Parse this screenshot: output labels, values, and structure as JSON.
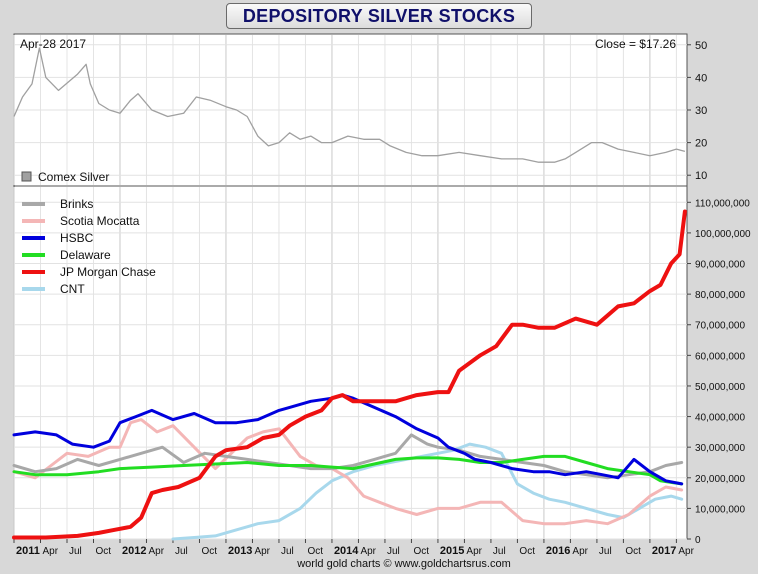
{
  "chart_title": "DEPOSITORY SILVER STOCKS",
  "footer": "world gold charts © www.goldchartsrus.com",
  "chart_data": [
    {
      "type": "line",
      "annotation_left": "Apr-28  2017",
      "annotation_right": "Close = $17.26",
      "legend": [
        "Comex Silver"
      ],
      "legend_placement": "bottom-left",
      "ylim": [
        7,
        53
      ],
      "yticks": [
        10,
        20,
        30,
        40,
        50
      ],
      "grid": true,
      "series": [
        {
          "name": "Comex Silver",
          "color": "#a0a0a0",
          "x": [
            2011.0,
            2011.08,
            2011.17,
            2011.24,
            2011.3,
            2011.42,
            2011.6,
            2011.68,
            2011.72,
            2011.8,
            2011.9,
            2012.0,
            2012.1,
            2012.17,
            2012.3,
            2012.45,
            2012.6,
            2012.72,
            2012.85,
            2013.0,
            2013.1,
            2013.2,
            2013.3,
            2013.4,
            2013.5,
            2013.6,
            2013.7,
            2013.8,
            2013.9,
            2014.0,
            2014.15,
            2014.3,
            2014.45,
            2014.55,
            2014.7,
            2014.85,
            2015.0,
            2015.2,
            2015.4,
            2015.6,
            2015.8,
            2015.95,
            2016.1,
            2016.2,
            2016.3,
            2016.45,
            2016.55,
            2016.7,
            2016.85,
            2017.0,
            2017.15,
            2017.25,
            2017.33
          ],
          "y": [
            28,
            34,
            38,
            49,
            40,
            36,
            41,
            44,
            38,
            32,
            30,
            29,
            33,
            35,
            30,
            28,
            29,
            34,
            33,
            31,
            30,
            28,
            22,
            19,
            20,
            23,
            21,
            22,
            20,
            20,
            22,
            21,
            21,
            19,
            17,
            16,
            16,
            17,
            16,
            15,
            15,
            14,
            14,
            15,
            17,
            20,
            20,
            18,
            17,
            16,
            17,
            18,
            17.3
          ]
        }
      ]
    },
    {
      "type": "line",
      "x_ticks": [
        {
          "x": 2011.0,
          "label": "2011",
          "major": true
        },
        {
          "x": 2011.25,
          "label": "Apr",
          "major": false
        },
        {
          "x": 2011.5,
          "label": "Jul",
          "major": false
        },
        {
          "x": 2011.75,
          "label": "Oct",
          "major": false
        },
        {
          "x": 2012.0,
          "label": "2012",
          "major": true
        },
        {
          "x": 2012.25,
          "label": "Apr",
          "major": false
        },
        {
          "x": 2012.5,
          "label": "Jul",
          "major": false
        },
        {
          "x": 2012.75,
          "label": "Oct",
          "major": false
        },
        {
          "x": 2013.0,
          "label": "2013",
          "major": true
        },
        {
          "x": 2013.25,
          "label": "Apr",
          "major": false
        },
        {
          "x": 2013.5,
          "label": "Jul",
          "major": false
        },
        {
          "x": 2013.75,
          "label": "Oct",
          "major": false
        },
        {
          "x": 2014.0,
          "label": "2014",
          "major": true
        },
        {
          "x": 2014.25,
          "label": "Apr",
          "major": false
        },
        {
          "x": 2014.5,
          "label": "Jul",
          "major": false
        },
        {
          "x": 2014.75,
          "label": "Oct",
          "major": false
        },
        {
          "x": 2015.0,
          "label": "2015",
          "major": true
        },
        {
          "x": 2015.25,
          "label": "Apr",
          "major": false
        },
        {
          "x": 2015.5,
          "label": "Jul",
          "major": false
        },
        {
          "x": 2015.75,
          "label": "Oct",
          "major": false
        },
        {
          "x": 2016.0,
          "label": "2016",
          "major": true
        },
        {
          "x": 2016.25,
          "label": "Apr",
          "major": false
        },
        {
          "x": 2016.5,
          "label": "Jul",
          "major": false
        },
        {
          "x": 2016.75,
          "label": "Oct",
          "major": false
        },
        {
          "x": 2017.0,
          "label": "2017",
          "major": true
        },
        {
          "x": 2017.25,
          "label": "Apr",
          "major": false
        }
      ],
      "ylim": [
        0,
        115000000
      ],
      "yticks": [
        0,
        10000000,
        20000000,
        30000000,
        40000000,
        50000000,
        60000000,
        70000000,
        80000000,
        90000000,
        100000000,
        110000000
      ],
      "ytick_labels": [
        "0",
        "10,000,000",
        "20,000,000",
        "30,000,000",
        "40,000,000",
        "50,000,000",
        "60,000,000",
        "70,000,000",
        "80,000,000",
        "90,000,000",
        "100,000,000",
        "110,000,000"
      ],
      "grid": true,
      "legend_placement": "top-left",
      "series": [
        {
          "name": "Brinks",
          "color": "#a8a8a8",
          "x": [
            2011.0,
            2011.2,
            2011.4,
            2011.6,
            2011.8,
            2012.0,
            2012.2,
            2012.4,
            2012.6,
            2012.8,
            2013.0,
            2013.2,
            2013.4,
            2013.6,
            2013.8,
            2014.0,
            2014.2,
            2014.4,
            2014.6,
            2014.75,
            2014.9,
            2015.0,
            2015.2,
            2015.4,
            2015.6,
            2015.8,
            2016.0,
            2016.2,
            2016.4,
            2016.6,
            2016.8,
            2017.0,
            2017.15,
            2017.3
          ],
          "y": [
            24000000,
            22000000,
            23000000,
            26000000,
            24000000,
            26000000,
            28000000,
            30000000,
            25000000,
            28000000,
            27000000,
            26000000,
            25000000,
            24000000,
            23000000,
            23000000,
            24000000,
            26000000,
            28000000,
            34000000,
            31000000,
            30000000,
            29000000,
            27000000,
            26000000,
            25000000,
            24000000,
            22000000,
            21000000,
            20000000,
            21000000,
            22000000,
            24000000,
            25000000
          ]
        },
        {
          "name": "Scotia Mocatta",
          "color": "#f4b6b6",
          "x": [
            2011.0,
            2011.2,
            2011.35,
            2011.5,
            2011.7,
            2011.9,
            2012.0,
            2012.1,
            2012.2,
            2012.35,
            2012.5,
            2012.7,
            2012.9,
            2013.05,
            2013.2,
            2013.35,
            2013.5,
            2013.7,
            2013.85,
            2014.0,
            2014.15,
            2014.3,
            2014.45,
            2014.6,
            2014.8,
            2015.0,
            2015.2,
            2015.4,
            2015.6,
            2015.8,
            2016.0,
            2016.2,
            2016.4,
            2016.6,
            2016.8,
            2017.0,
            2017.15,
            2017.3
          ],
          "y": [
            22000000,
            20000000,
            24000000,
            28000000,
            27000000,
            30000000,
            30000000,
            38000000,
            39000000,
            35000000,
            37000000,
            30000000,
            23000000,
            28000000,
            33000000,
            35000000,
            36000000,
            27000000,
            24000000,
            23000000,
            20000000,
            14000000,
            12000000,
            10000000,
            8000000,
            10000000,
            10000000,
            12000000,
            12000000,
            6000000,
            5000000,
            5000000,
            6000000,
            5000000,
            8000000,
            14000000,
            17000000,
            16000000
          ]
        },
        {
          "name": "HSBC",
          "color": "#0000dd",
          "x": [
            2011.0,
            2011.2,
            2011.4,
            2011.55,
            2011.75,
            2011.9,
            2012.0,
            2012.15,
            2012.3,
            2012.5,
            2012.7,
            2012.9,
            2013.1,
            2013.3,
            2013.5,
            2013.6,
            2013.8,
            2014.0,
            2014.1,
            2014.2,
            2014.4,
            2014.6,
            2014.8,
            2015.0,
            2015.1,
            2015.25,
            2015.35,
            2015.5,
            2015.7,
            2015.9,
            2016.05,
            2016.2,
            2016.4,
            2016.55,
            2016.7,
            2016.85,
            2017.0,
            2017.15,
            2017.3
          ],
          "y": [
            34000000,
            35000000,
            34000000,
            31000000,
            30000000,
            32000000,
            38000000,
            40000000,
            42000000,
            39000000,
            41000000,
            38000000,
            38000000,
            39000000,
            42000000,
            43000000,
            45000000,
            46000000,
            47000000,
            46000000,
            43000000,
            40000000,
            36000000,
            33000000,
            30000000,
            28000000,
            26000000,
            25000000,
            23000000,
            22000000,
            22000000,
            21000000,
            22000000,
            21000000,
            20000000,
            26000000,
            22000000,
            19000000,
            18000000
          ]
        },
        {
          "name": "Delaware",
          "color": "#22dd22",
          "x": [
            2011.0,
            2011.2,
            2011.5,
            2011.8,
            2012.0,
            2012.3,
            2012.6,
            2012.9,
            2013.2,
            2013.5,
            2013.8,
            2014.0,
            2014.2,
            2014.4,
            2014.6,
            2014.8,
            2015.0,
            2015.2,
            2015.4,
            2015.6,
            2015.8,
            2016.0,
            2016.2,
            2016.4,
            2016.6,
            2016.8,
            2017.0,
            2017.1,
            2017.2,
            2017.3
          ],
          "y": [
            22000000,
            21000000,
            21000000,
            22000000,
            23000000,
            23500000,
            24000000,
            24500000,
            25000000,
            24000000,
            24000000,
            23500000,
            23000000,
            24500000,
            26000000,
            26500000,
            26500000,
            26000000,
            25000000,
            25000000,
            26000000,
            27000000,
            27000000,
            25000000,
            23000000,
            22000000,
            21000000,
            19000000,
            18500000,
            18000000
          ]
        },
        {
          "name": "JP Morgan Chase",
          "color": "#ee1111",
          "x": [
            2011.0,
            2011.3,
            2011.6,
            2011.8,
            2011.95,
            2012.1,
            2012.2,
            2012.3,
            2012.4,
            2012.55,
            2012.75,
            2012.9,
            2013.0,
            2013.2,
            2013.35,
            2013.5,
            2013.6,
            2013.75,
            2013.9,
            2014.0,
            2014.1,
            2014.2,
            2014.4,
            2014.6,
            2014.8,
            2015.0,
            2015.1,
            2015.2,
            2015.4,
            2015.55,
            2015.7,
            2015.8,
            2015.95,
            2016.1,
            2016.3,
            2016.5,
            2016.7,
            2016.85,
            2017.0,
            2017.1,
            2017.2,
            2017.28,
            2017.33
          ],
          "y": [
            500000,
            500000,
            1000000,
            2000000,
            3000000,
            4000000,
            7000000,
            15000000,
            16000000,
            17000000,
            20000000,
            27000000,
            29000000,
            30000000,
            33000000,
            34000000,
            37000000,
            40000000,
            42000000,
            46000000,
            47000000,
            45000000,
            45000000,
            45000000,
            47000000,
            48000000,
            48000000,
            55000000,
            60000000,
            63000000,
            70000000,
            70000000,
            69000000,
            69000000,
            72000000,
            70000000,
            76000000,
            77000000,
            81000000,
            83000000,
            90000000,
            93000000,
            107000000
          ]
        },
        {
          "name": "CNT",
          "color": "#a8d8ec",
          "x": [
            2012.5,
            2012.7,
            2012.9,
            2013.1,
            2013.3,
            2013.5,
            2013.7,
            2013.85,
            2014.0,
            2014.2,
            2014.4,
            2014.55,
            2014.7,
            2014.85,
            2015.0,
            2015.15,
            2015.3,
            2015.45,
            2015.6,
            2015.75,
            2015.9,
            2016.05,
            2016.2,
            2016.4,
            2016.6,
            2016.75,
            2016.9,
            2017.05,
            2017.2,
            2017.3
          ],
          "y": [
            0,
            500000,
            1000000,
            3000000,
            5000000,
            6000000,
            10000000,
            15000000,
            19000000,
            22000000,
            24000000,
            25000000,
            26000000,
            27000000,
            28000000,
            29000000,
            31000000,
            30000000,
            28000000,
            18000000,
            15000000,
            13000000,
            12000000,
            10000000,
            8000000,
            7000000,
            10000000,
            13000000,
            14000000,
            13000000
          ]
        }
      ]
    }
  ]
}
